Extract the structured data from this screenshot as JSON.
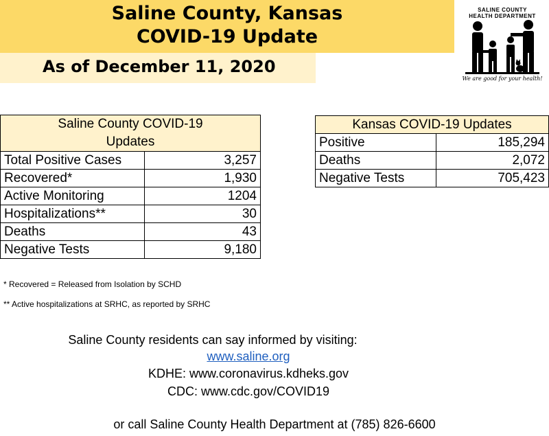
{
  "header": {
    "title_line1": "Saline County, Kansas",
    "title_line2": "COVID-19 Update",
    "date": "As of December 11, 2020"
  },
  "logo": {
    "line1": "SALINE COUNTY",
    "line2": "HEALTH DEPARTMENT",
    "tagline": "We are good for your health!",
    "icon": "family-icon"
  },
  "saline_table": {
    "header": "Saline County COVID-19 Updates",
    "header_line1": "Saline County COVID-19",
    "header_line2": "Updates",
    "rows": [
      {
        "label": "Total Positive Cases",
        "value": "3,257"
      },
      {
        "label": "Recovered*",
        "value": "1,930"
      },
      {
        "label": "Active Monitoring",
        "value": "1204"
      },
      {
        "label": "Hospitalizations**",
        "value": "30"
      },
      {
        "label": "Deaths",
        "value": "43"
      },
      {
        "label": "Negative Tests",
        "value": "9,180"
      }
    ]
  },
  "kansas_table": {
    "header": "Kansas COVID-19 Updates",
    "rows": [
      {
        "label": "Positive",
        "value": "185,294"
      },
      {
        "label": "Deaths",
        "value": "2,072"
      },
      {
        "label": "Negative Tests",
        "value": "705,423"
      }
    ]
  },
  "notes": [
    "* Recovered = Released from Isolation by SCHD",
    "** Active hospitalizations at SRHC, as reported by SRHC"
  ],
  "info": {
    "line1": "Saline County residents can say informed by visiting:",
    "link": "www.saline.org",
    "line3": "KDHE:  www.coronavirus.kdheks.gov",
    "line4": "CDC:  www.cdc.gov/COVID19",
    "line5": "or call Saline County Health Department at (785) 826-6600"
  },
  "colors": {
    "title_band": "#fcd967",
    "date_band": "#fff2cc",
    "table_header": "#fff2cc",
    "link": "#1f5fbf"
  }
}
